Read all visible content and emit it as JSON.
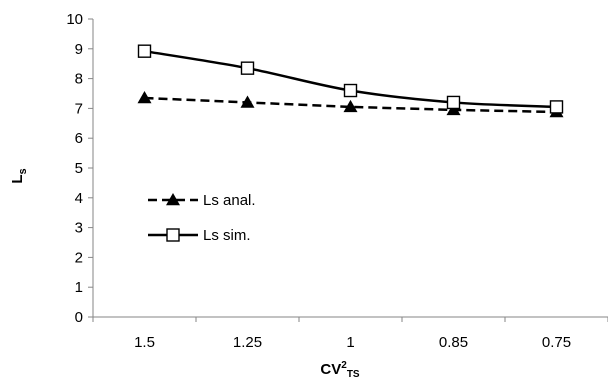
{
  "chart_data": {
    "type": "line",
    "categories": [
      "1.5",
      "1.25",
      "1",
      "0.85",
      "0.75"
    ],
    "series": [
      {
        "name": "Ls anal.",
        "values": [
          7.35,
          7.2,
          7.05,
          6.95,
          6.88
        ],
        "style": "dashed",
        "marker": "filled-triangle",
        "color": "#000000"
      },
      {
        "name": "Ls sim.",
        "values": [
          8.92,
          8.35,
          7.6,
          7.2,
          7.05
        ],
        "style": "solid",
        "marker": "open-square",
        "color": "#000000"
      }
    ],
    "ylim": [
      0,
      10
    ],
    "yticks": [
      "0",
      "1",
      "2",
      "3",
      "4",
      "5",
      "6",
      "7",
      "8",
      "9",
      "10"
    ],
    "ylabel_main": "L",
    "ylabel_sub": "s",
    "xlabel_main": "CV",
    "xlabel_sup": "2",
    "xlabel_sub": "TS",
    "grid": false,
    "legend_position": "middle-left"
  }
}
